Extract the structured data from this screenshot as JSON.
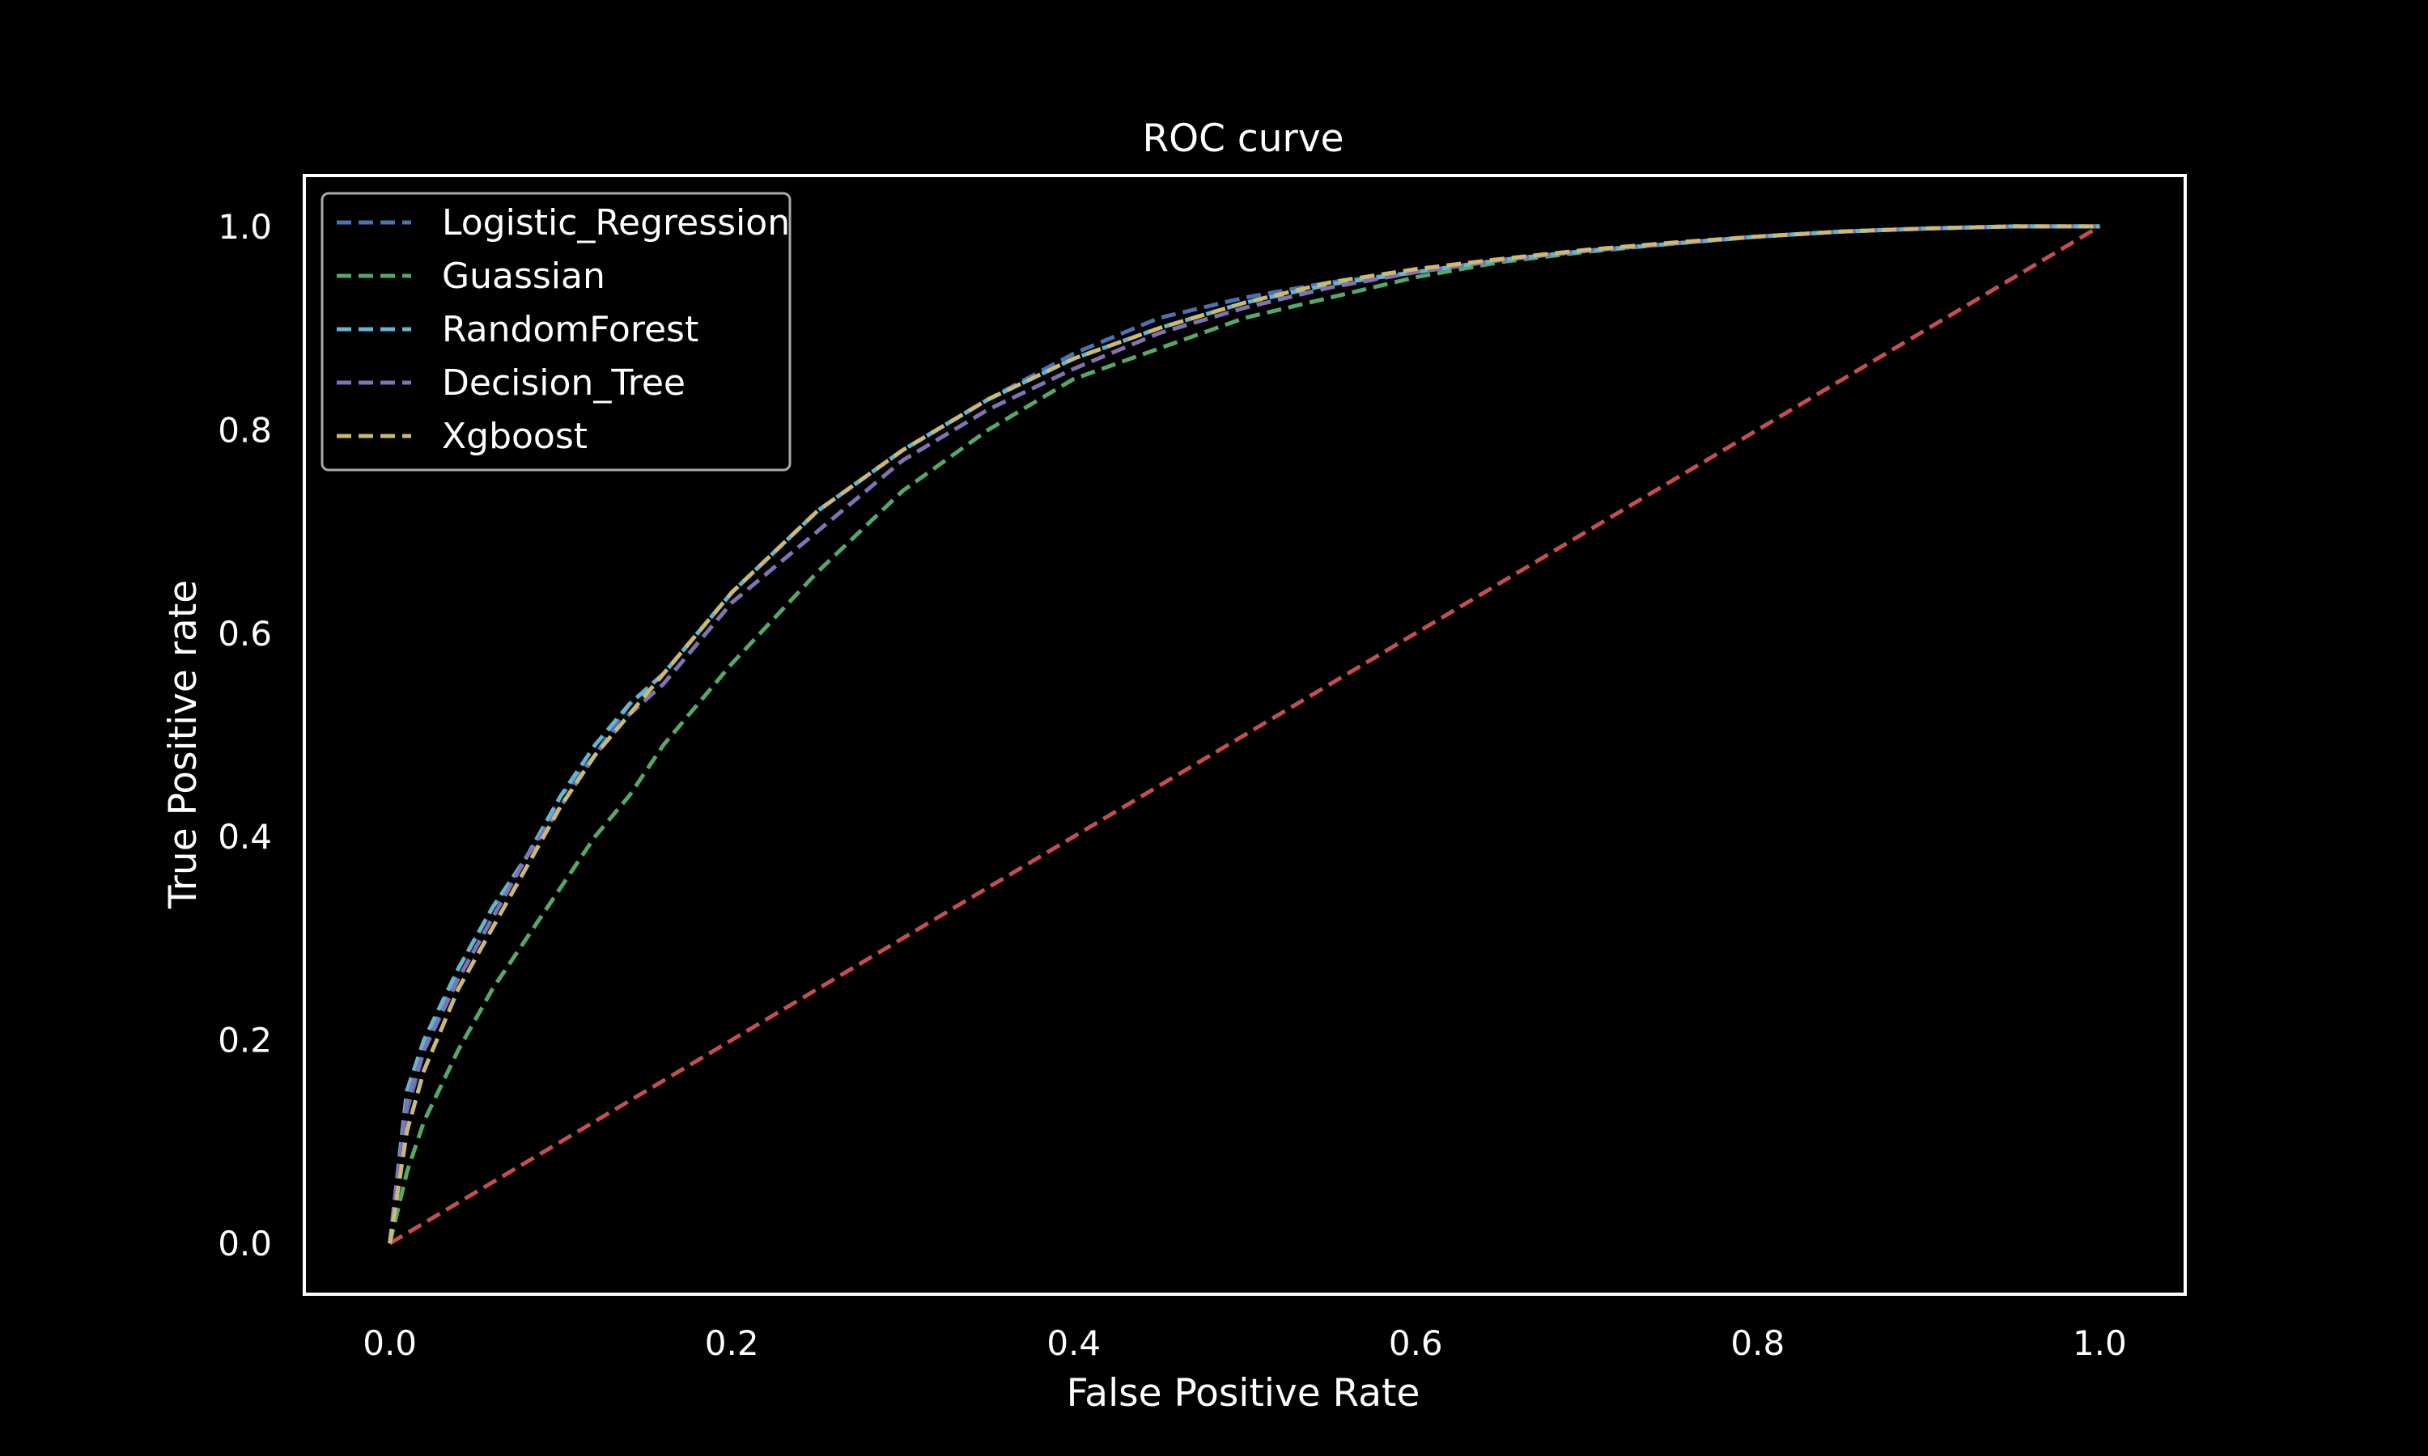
{
  "chart_data": {
    "type": "line",
    "title": "ROC curve",
    "xlabel": "False Positive Rate",
    "ylabel": "True Positive rate",
    "xlim": [
      -0.05,
      1.05
    ],
    "ylim": [
      -0.05,
      1.05
    ],
    "xticks": [
      0.0,
      0.2,
      0.4,
      0.6,
      0.8,
      1.0
    ],
    "yticks": [
      0.0,
      0.2,
      0.4,
      0.6,
      0.8,
      1.0
    ],
    "xtick_labels": [
      "0.0",
      "0.2",
      "0.4",
      "0.6",
      "0.8",
      "1.0"
    ],
    "ytick_labels": [
      "0.0",
      "0.2",
      "0.4",
      "0.6",
      "0.8",
      "1.0"
    ],
    "grid": false,
    "legend_position": "top-left",
    "background": "#000000",
    "foreground": "#ffffff",
    "series": [
      {
        "name": "Logistic_Regression",
        "color": "#4c72b0",
        "style": "dashed",
        "x": [
          0.0,
          0.01,
          0.02,
          0.04,
          0.06,
          0.08,
          0.1,
          0.12,
          0.14,
          0.16,
          0.18,
          0.2,
          0.25,
          0.3,
          0.35,
          0.4,
          0.45,
          0.5,
          0.55,
          0.6,
          0.65,
          0.7,
          0.75,
          0.8,
          0.85,
          0.9,
          0.95,
          1.0
        ],
        "y": [
          0.0,
          0.13,
          0.19,
          0.27,
          0.33,
          0.38,
          0.44,
          0.48,
          0.53,
          0.56,
          0.6,
          0.64,
          0.72,
          0.78,
          0.83,
          0.875,
          0.91,
          0.93,
          0.945,
          0.955,
          0.967,
          0.976,
          0.983,
          0.99,
          0.995,
          0.998,
          1.0,
          1.0
        ]
      },
      {
        "name": "Guassian",
        "color": "#55a868",
        "style": "dashed",
        "x": [
          0.0,
          0.01,
          0.02,
          0.04,
          0.06,
          0.08,
          0.1,
          0.12,
          0.14,
          0.16,
          0.18,
          0.2,
          0.25,
          0.3,
          0.35,
          0.4,
          0.45,
          0.5,
          0.55,
          0.6,
          0.65,
          0.7,
          0.75,
          0.8,
          0.85,
          0.9,
          0.95,
          1.0
        ],
        "y": [
          0.0,
          0.07,
          0.12,
          0.19,
          0.25,
          0.3,
          0.35,
          0.4,
          0.44,
          0.49,
          0.53,
          0.57,
          0.66,
          0.74,
          0.8,
          0.85,
          0.88,
          0.91,
          0.93,
          0.95,
          0.965,
          0.975,
          0.983,
          0.99,
          0.995,
          0.998,
          1.0,
          1.0
        ]
      },
      {
        "name": "RandomForest",
        "color": "#64b5cd",
        "style": "dashed",
        "x": [
          0.0,
          0.01,
          0.02,
          0.04,
          0.06,
          0.08,
          0.1,
          0.12,
          0.14,
          0.16,
          0.18,
          0.2,
          0.25,
          0.3,
          0.35,
          0.4,
          0.45,
          0.5,
          0.55,
          0.6,
          0.65,
          0.7,
          0.75,
          0.8,
          0.85,
          0.9,
          0.95,
          1.0
        ],
        "y": [
          0.0,
          0.15,
          0.2,
          0.27,
          0.33,
          0.38,
          0.44,
          0.49,
          0.53,
          0.56,
          0.6,
          0.64,
          0.72,
          0.78,
          0.83,
          0.87,
          0.9,
          0.925,
          0.943,
          0.955,
          0.967,
          0.976,
          0.983,
          0.99,
          0.995,
          0.998,
          1.0,
          1.0
        ]
      },
      {
        "name": "Decision_Tree",
        "color": "#8172b3",
        "style": "dashed",
        "x": [
          0.0,
          0.01,
          0.02,
          0.04,
          0.06,
          0.08,
          0.1,
          0.12,
          0.14,
          0.16,
          0.18,
          0.2,
          0.25,
          0.3,
          0.35,
          0.4,
          0.45,
          0.5,
          0.55,
          0.6,
          0.65,
          0.7,
          0.75,
          0.8,
          0.85,
          0.9,
          0.95,
          1.0
        ],
        "y": [
          0.0,
          0.14,
          0.19,
          0.26,
          0.32,
          0.38,
          0.43,
          0.48,
          0.52,
          0.55,
          0.59,
          0.63,
          0.7,
          0.77,
          0.82,
          0.86,
          0.895,
          0.92,
          0.94,
          0.955,
          0.967,
          0.976,
          0.983,
          0.99,
          0.995,
          0.998,
          1.0,
          1.0
        ]
      },
      {
        "name": "Xgboost",
        "color": "#ccb974",
        "style": "dashed",
        "x": [
          0.0,
          0.01,
          0.02,
          0.04,
          0.06,
          0.08,
          0.1,
          0.12,
          0.14,
          0.16,
          0.18,
          0.2,
          0.25,
          0.3,
          0.35,
          0.4,
          0.45,
          0.5,
          0.55,
          0.6,
          0.65,
          0.7,
          0.75,
          0.8,
          0.85,
          0.9,
          0.95,
          1.0
        ],
        "y": [
          0.0,
          0.11,
          0.17,
          0.25,
          0.31,
          0.37,
          0.43,
          0.48,
          0.52,
          0.56,
          0.6,
          0.64,
          0.72,
          0.78,
          0.83,
          0.87,
          0.9,
          0.925,
          0.945,
          0.958,
          0.968,
          0.977,
          0.984,
          0.99,
          0.995,
          0.998,
          1.0,
          1.0
        ]
      }
    ],
    "reference_line": {
      "color": "#c44e52",
      "style": "dashed",
      "x": [
        0.0,
        1.0
      ],
      "y": [
        0.0,
        1.0
      ]
    }
  }
}
